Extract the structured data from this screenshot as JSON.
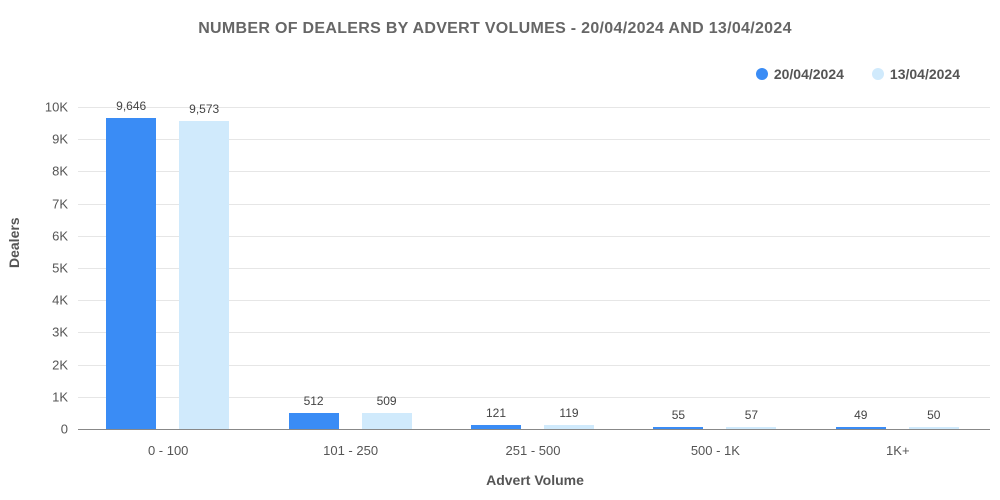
{
  "chart_data": {
    "type": "bar",
    "title": "NUMBER OF DEALERS BY ADVERT VOLUMES - 20/04/2024 AND 13/04/2024",
    "xlabel": "Advert Volume",
    "ylabel": "Dealers",
    "categories": [
      "0 - 100",
      "101 - 250",
      "251 - 500",
      "500 - 1K",
      "1K+"
    ],
    "series": [
      {
        "name": "20/04/2024",
        "color": "#3a8cf5",
        "values": [
          9646,
          512,
          121,
          55,
          49
        ],
        "labels": [
          "9,646",
          "512",
          "121",
          "55",
          "49"
        ]
      },
      {
        "name": "13/04/2024",
        "color": "#d0eafc",
        "values": [
          9573,
          509,
          119,
          57,
          50
        ],
        "labels": [
          "9,573",
          "509",
          "119",
          "57",
          "50"
        ]
      }
    ],
    "ylim": [
      0,
      10000
    ],
    "yticks": [
      "0",
      "1K",
      "2K",
      "3K",
      "4K",
      "5K",
      "6K",
      "7K",
      "8K",
      "9K",
      "10K"
    ],
    "grid": true,
    "legend_position": "top-right"
  }
}
